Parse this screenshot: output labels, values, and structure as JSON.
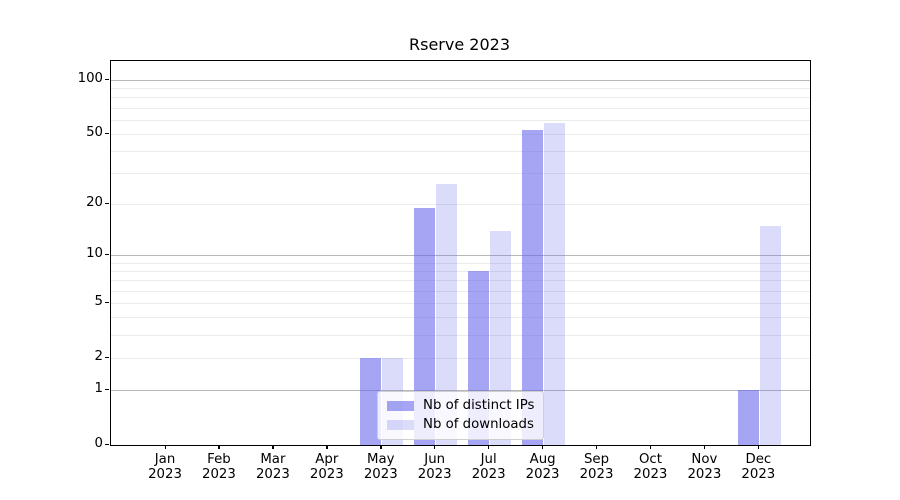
{
  "title": "Rserve 2023",
  "chart_data": {
    "type": "bar",
    "title": "Rserve 2023",
    "x_categories": [
      {
        "month": "Jan",
        "year": "2023"
      },
      {
        "month": "Feb",
        "year": "2023"
      },
      {
        "month": "Mar",
        "year": "2023"
      },
      {
        "month": "Apr",
        "year": "2023"
      },
      {
        "month": "May",
        "year": "2023"
      },
      {
        "month": "Jun",
        "year": "2023"
      },
      {
        "month": "Jul",
        "year": "2023"
      },
      {
        "month": "Aug",
        "year": "2023"
      },
      {
        "month": "Sep",
        "year": "2023"
      },
      {
        "month": "Oct",
        "year": "2023"
      },
      {
        "month": "Nov",
        "year": "2023"
      },
      {
        "month": "Dec",
        "year": "2023"
      }
    ],
    "series": [
      {
        "name": "Nb of distinct IPs",
        "color": "rgba(100,100,235,0.58)",
        "values": [
          0,
          0,
          0,
          0,
          2,
          19,
          8,
          53,
          0,
          0,
          0,
          1
        ]
      },
      {
        "name": "Nb of downloads",
        "color": "rgba(100,100,235,0.23)",
        "values": [
          0,
          0,
          0,
          0,
          2,
          26,
          14,
          58,
          0,
          0,
          0,
          15
        ]
      }
    ],
    "y_axis": {
      "scale": "log1p",
      "ticks": [
        100,
        50,
        20,
        10,
        5,
        2,
        1,
        0
      ],
      "range": [
        0,
        124
      ],
      "major_grid": [
        1,
        10,
        100
      ],
      "minor_grid": [
        2,
        3,
        4,
        5,
        6,
        7,
        8,
        9,
        20,
        30,
        40,
        50,
        60,
        70,
        80,
        90
      ]
    },
    "legend": {
      "position": "lower center",
      "entries": [
        "Nb of distinct IPs",
        "Nb of downloads"
      ]
    },
    "grid": true
  },
  "colors": {
    "bar_distinct_ips_flat": "#a5a5f3",
    "bar_downloads_flat": "#dbdbfa",
    "major_grid": "#b8b8b8",
    "minor_grid": "#ebebeb",
    "spine": "#000000",
    "legend_border": "#cfcfcf"
  }
}
